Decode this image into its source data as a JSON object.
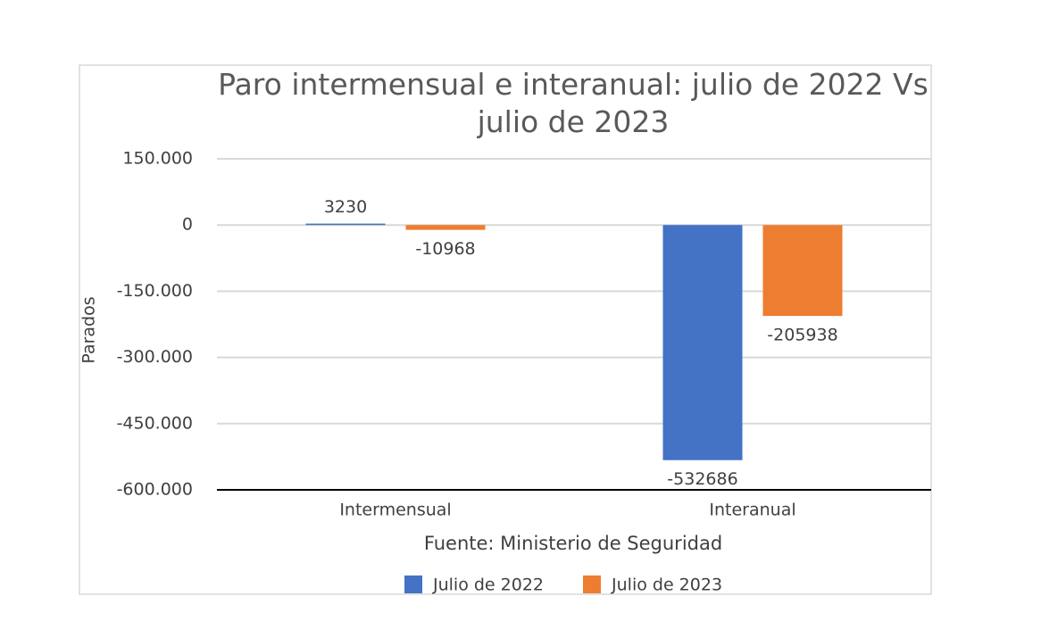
{
  "chart_data": {
    "type": "bar",
    "title": "Paro intermensual e interanual: julio de 2022 Vs julio de 2023",
    "y_label": "Parados",
    "x_label": "Fuente: Ministerio de Seguridad",
    "categories": [
      "Intermensual",
      "Interanual"
    ],
    "series": [
      {
        "name": "Julio de 2022",
        "color": "#4472c4",
        "values": [
          3230,
          -532686
        ]
      },
      {
        "name": "Julio de 2023",
        "color": "#ed7d31",
        "values": [
          -10968,
          -205938
        ]
      }
    ],
    "ylim": [
      -600000,
      150000
    ],
    "yticks": [
      {
        "value": -600000,
        "label": "-600.000"
      },
      {
        "value": -450000,
        "label": "-450.000"
      },
      {
        "value": -300000,
        "label": "-300.000"
      },
      {
        "value": -150000,
        "label": "-150.000"
      },
      0,
      {
        "value": 150000,
        "label": "150.000"
      }
    ],
    "grid": true,
    "legend": "bottom"
  }
}
